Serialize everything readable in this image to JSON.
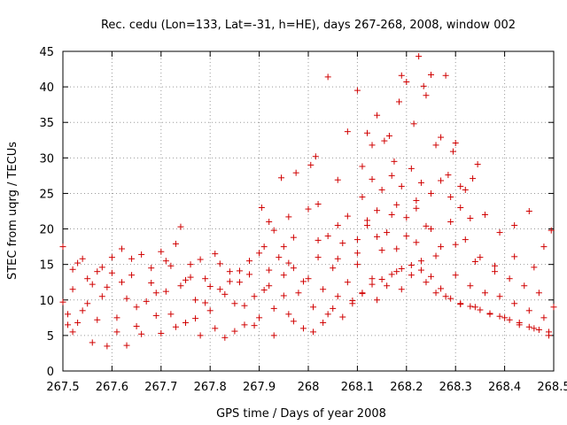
{
  "chart_data": {
    "type": "scatter",
    "title": "Rec. cedu (Lon=133, Lat=-31, h=HE), days 267-268, 2008, window 002",
    "xlabel": "GPS time / Days of year 2008",
    "ylabel": "STEC from uqrg / TECUs",
    "xlim": [
      267.5,
      268.5
    ],
    "ylim": [
      0,
      45
    ],
    "xticks": [
      267.5,
      267.6,
      267.7,
      267.8,
      267.9,
      268,
      268.1,
      268.2,
      268.3,
      268.4,
      268.5
    ],
    "xtick_labels": [
      "267.5",
      "267.6",
      "267.7",
      "267.8",
      "267.9",
      "268",
      "268.1",
      "268.2",
      "268.3",
      "268.4",
      "268.5"
    ],
    "yticks": [
      0,
      5,
      10,
      15,
      20,
      25,
      30,
      35,
      40,
      45
    ],
    "ytick_labels": [
      "0",
      "5",
      "10",
      "15",
      "20",
      "25",
      "30",
      "35",
      "40",
      "45"
    ],
    "grid": true,
    "marker": "+",
    "color": "#d00000",
    "points": [
      [
        267.5,
        17.5
      ],
      [
        267.5,
        9.7
      ],
      [
        267.51,
        6.5
      ],
      [
        267.52,
        11.5
      ],
      [
        267.52,
        5.5
      ],
      [
        267.53,
        15.2
      ],
      [
        267.54,
        8.5
      ],
      [
        267.55,
        13.0
      ],
      [
        267.56,
        4.0
      ],
      [
        267.57,
        14.0
      ],
      [
        267.58,
        10.5
      ],
      [
        267.59,
        3.5
      ],
      [
        267.6,
        16.0
      ],
      [
        267.61,
        7.5
      ],
      [
        267.62,
        12.5
      ],
      [
        267.63,
        3.6
      ],
      [
        267.64,
        13.5
      ],
      [
        267.65,
        9.0
      ],
      [
        267.66,
        5.2
      ],
      [
        267.68,
        14.5
      ],
      [
        267.69,
        11.0
      ],
      [
        267.7,
        5.3
      ],
      [
        267.71,
        15.5
      ],
      [
        267.72,
        8.0
      ],
      [
        267.73,
        17.9
      ],
      [
        267.74,
        12.0
      ],
      [
        267.75,
        6.8
      ],
      [
        267.76,
        15.0
      ],
      [
        267.77,
        10.0
      ],
      [
        267.78,
        5.0
      ],
      [
        267.79,
        13.0
      ],
      [
        267.8,
        8.5
      ],
      [
        267.81,
        16.5
      ],
      [
        267.82,
        11.5
      ],
      [
        267.83,
        4.7
      ],
      [
        267.84,
        14.0
      ],
      [
        267.85,
        9.5
      ],
      [
        267.86,
        12.5
      ],
      [
        267.87,
        6.5
      ],
      [
        267.88,
        15.5
      ],
      [
        267.89,
        10.5
      ],
      [
        267.9,
        7.5
      ],
      [
        267.91,
        17.5
      ],
      [
        267.92,
        12.0
      ],
      [
        267.93,
        5.0
      ],
      [
        267.94,
        16.0
      ],
      [
        267.95,
        13.5
      ],
      [
        267.96,
        8.0
      ],
      [
        267.97,
        14.5
      ],
      [
        267.98,
        11.0
      ],
      [
        267.99,
        6.0
      ],
      [
        267.51,
        8.0
      ],
      [
        267.53,
        6.8
      ],
      [
        267.55,
        9.5
      ],
      [
        267.57,
        7.2
      ],
      [
        267.59,
        11.8
      ],
      [
        267.61,
        5.5
      ],
      [
        267.63,
        10.2
      ],
      [
        267.65,
        6.3
      ],
      [
        267.67,
        9.8
      ],
      [
        267.69,
        7.8
      ],
      [
        267.71,
        11.2
      ],
      [
        267.73,
        6.2
      ],
      [
        267.75,
        12.8
      ],
      [
        267.77,
        7.4
      ],
      [
        267.79,
        9.6
      ],
      [
        267.81,
        6.0
      ],
      [
        267.83,
        10.8
      ],
      [
        267.85,
        5.6
      ],
      [
        267.87,
        9.2
      ],
      [
        267.89,
        6.4
      ],
      [
        267.91,
        11.4
      ],
      [
        267.93,
        8.8
      ],
      [
        267.95,
        10.6
      ],
      [
        267.97,
        7.0
      ],
      [
        267.99,
        12.6
      ],
      [
        267.52,
        14.3
      ],
      [
        267.56,
        12.2
      ],
      [
        267.6,
        13.8
      ],
      [
        267.64,
        15.8
      ],
      [
        267.68,
        12.4
      ],
      [
        267.72,
        14.8
      ],
      [
        267.76,
        13.2
      ],
      [
        267.8,
        11.9
      ],
      [
        267.84,
        12.6
      ],
      [
        267.88,
        13.6
      ],
      [
        267.92,
        14.2
      ],
      [
        267.96,
        15.2
      ],
      [
        267.905,
        23.0
      ],
      [
        267.92,
        21.0
      ],
      [
        267.945,
        27.2
      ],
      [
        267.96,
        21.7
      ],
      [
        267.975,
        27.9
      ],
      [
        267.93,
        19.8
      ],
      [
        267.95,
        17.5
      ],
      [
        267.97,
        18.8
      ],
      [
        267.54,
        15.8
      ],
      [
        267.58,
        14.6
      ],
      [
        267.62,
        17.2
      ],
      [
        267.66,
        16.4
      ],
      [
        267.7,
        16.8
      ],
      [
        267.74,
        20.3
      ],
      [
        267.78,
        15.7
      ],
      [
        267.82,
        15.1
      ],
      [
        267.86,
        14.1
      ],
      [
        267.9,
        16.6
      ],
      [
        268.0,
        13.0
      ],
      [
        268.01,
        9.0
      ],
      [
        268.02,
        16.0
      ],
      [
        268.03,
        11.5
      ],
      [
        268.04,
        8.0
      ],
      [
        268.05,
        14.5
      ],
      [
        268.06,
        10.5
      ],
      [
        268.07,
        18.0
      ],
      [
        268.08,
        12.5
      ],
      [
        268.09,
        9.5
      ],
      [
        268.1,
        15.0
      ],
      [
        268.11,
        11.0
      ],
      [
        268.12,
        20.5
      ],
      [
        268.13,
        13.0
      ],
      [
        268.14,
        10.0
      ],
      [
        268.15,
        17.0
      ],
      [
        268.16,
        12.0
      ],
      [
        268.17,
        22.0
      ],
      [
        268.18,
        14.0
      ],
      [
        268.19,
        11.5
      ],
      [
        268.2,
        19.0
      ],
      [
        268.21,
        13.5
      ],
      [
        268.22,
        24.0
      ],
      [
        268.23,
        15.5
      ],
      [
        268.24,
        12.5
      ],
      [
        268.25,
        20.0
      ],
      [
        268.26,
        11.0
      ],
      [
        268.27,
        17.5
      ],
      [
        268.28,
        10.5
      ],
      [
        268.29,
        21.0
      ],
      [
        268.3,
        13.5
      ],
      [
        268.31,
        9.5
      ],
      [
        268.32,
        18.5
      ],
      [
        268.33,
        12.0
      ],
      [
        268.34,
        9.0
      ],
      [
        268.35,
        16.0
      ],
      [
        268.36,
        11.0
      ],
      [
        268.37,
        8.0
      ],
      [
        268.38,
        14.0
      ],
      [
        268.39,
        10.5
      ],
      [
        268.4,
        7.5
      ],
      [
        268.41,
        13.0
      ],
      [
        268.42,
        9.5
      ],
      [
        268.43,
        6.5
      ],
      [
        268.44,
        12.0
      ],
      [
        268.45,
        8.5
      ],
      [
        268.46,
        6.0
      ],
      [
        268.47,
        11.0
      ],
      [
        268.48,
        7.5
      ],
      [
        268.49,
        5.5
      ],
      [
        268.5,
        9.0
      ],
      [
        268.005,
        29.0
      ],
      [
        268.015,
        30.2
      ],
      [
        268.04,
        41.4
      ],
      [
        268.06,
        26.9
      ],
      [
        268.08,
        33.7
      ],
      [
        268.1,
        39.5
      ],
      [
        268.11,
        28.8
      ],
      [
        268.12,
        33.5
      ],
      [
        268.13,
        31.8
      ],
      [
        268.14,
        36.0
      ],
      [
        268.155,
        32.4
      ],
      [
        268.165,
        33.1
      ],
      [
        268.175,
        29.5
      ],
      [
        268.185,
        37.9
      ],
      [
        268.19,
        41.6
      ],
      [
        268.2,
        40.7
      ],
      [
        268.215,
        34.8
      ],
      [
        268.225,
        44.3
      ],
      [
        268.235,
        40.1
      ],
      [
        268.24,
        38.8
      ],
      [
        268.25,
        41.7
      ],
      [
        268.26,
        31.8
      ],
      [
        268.27,
        32.9
      ],
      [
        268.28,
        41.6
      ],
      [
        268.285,
        27.6
      ],
      [
        268.295,
        30.9
      ],
      [
        268.3,
        32.1
      ],
      [
        268.31,
        26.0
      ],
      [
        268.32,
        25.5
      ],
      [
        268.335,
        27.1
      ],
      [
        268.345,
        29.1
      ],
      [
        268.11,
        24.5
      ],
      [
        268.13,
        27.0
      ],
      [
        268.15,
        25.5
      ],
      [
        268.17,
        27.5
      ],
      [
        268.19,
        26.0
      ],
      [
        268.21,
        28.5
      ],
      [
        268.23,
        26.5
      ],
      [
        268.25,
        25.0
      ],
      [
        268.27,
        26.8
      ],
      [
        268.29,
        24.5
      ],
      [
        268.31,
        23.0
      ],
      [
        268.33,
        21.5
      ],
      [
        268.36,
        22.0
      ],
      [
        268.39,
        19.5
      ],
      [
        268.42,
        20.5
      ],
      [
        268.45,
        22.5
      ],
      [
        268.48,
        17.5
      ],
      [
        268.495,
        19.8
      ],
      [
        268.0,
        22.8
      ],
      [
        268.02,
        23.5
      ],
      [
        268.04,
        19.0
      ],
      [
        268.06,
        20.5
      ],
      [
        268.08,
        21.8
      ],
      [
        268.1,
        18.5
      ],
      [
        268.12,
        21.2
      ],
      [
        268.14,
        22.6
      ],
      [
        268.16,
        19.5
      ],
      [
        268.18,
        23.4
      ],
      [
        268.2,
        21.6
      ],
      [
        268.22,
        22.9
      ],
      [
        268.24,
        20.4
      ],
      [
        268.01,
        5.5
      ],
      [
        268.03,
        6.8
      ],
      [
        268.05,
        8.8
      ],
      [
        268.07,
        7.6
      ],
      [
        268.09,
        9.9
      ],
      [
        268.11,
        10.9
      ],
      [
        268.13,
        12.2
      ],
      [
        268.15,
        12.9
      ],
      [
        268.17,
        13.6
      ],
      [
        268.19,
        14.4
      ],
      [
        268.21,
        14.9
      ],
      [
        268.23,
        14.2
      ],
      [
        268.25,
        13.3
      ],
      [
        268.27,
        11.6
      ],
      [
        268.29,
        10.2
      ],
      [
        268.31,
        9.4
      ],
      [
        268.33,
        9.1
      ],
      [
        268.35,
        8.6
      ],
      [
        268.37,
        8.1
      ],
      [
        268.39,
        7.7
      ],
      [
        268.41,
        7.2
      ],
      [
        268.43,
        6.8
      ],
      [
        268.45,
        6.2
      ],
      [
        268.47,
        5.8
      ],
      [
        268.49,
        5.0
      ],
      [
        268.02,
        18.4
      ],
      [
        268.06,
        15.8
      ],
      [
        268.1,
        16.6
      ],
      [
        268.14,
        18.9
      ],
      [
        268.18,
        17.2
      ],
      [
        268.22,
        18.1
      ],
      [
        268.26,
        16.2
      ],
      [
        268.3,
        17.8
      ],
      [
        268.34,
        15.4
      ],
      [
        268.38,
        14.8
      ],
      [
        268.42,
        16.1
      ],
      [
        268.46,
        14.6
      ]
    ]
  }
}
